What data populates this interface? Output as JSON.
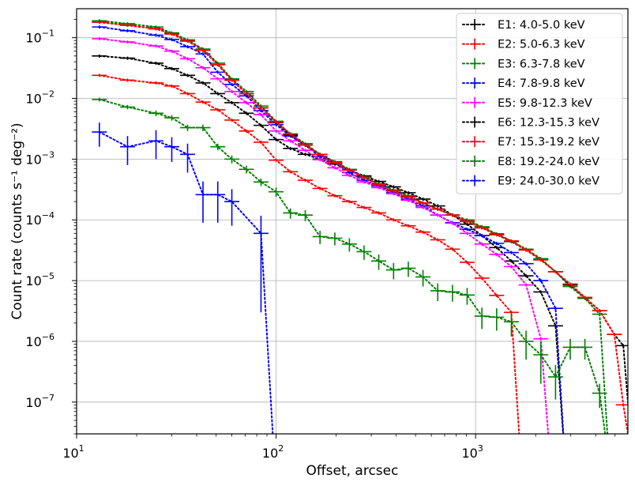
{
  "chart_data": {
    "type": "line",
    "xlabel": "Offset, arcsec",
    "ylabel": "Count rate (counts s⁻¹ deg⁻²)",
    "xscale": "log",
    "yscale": "log",
    "xlim": [
      10,
      5800
    ],
    "ylim": [
      3e-08,
      0.3
    ],
    "grid": true,
    "legend_position": "upper-right",
    "x_ticks": [
      {
        "value": 10,
        "base": "10",
        "exp": "1"
      },
      {
        "value": 100,
        "base": "10",
        "exp": "2"
      },
      {
        "value": 1000,
        "base": "10",
        "exp": "3"
      }
    ],
    "y_ticks": [
      {
        "value": 1e-07,
        "base": "10",
        "exp": "−7"
      },
      {
        "value": 1e-06,
        "base": "10",
        "exp": "−6"
      },
      {
        "value": 1e-05,
        "base": "10",
        "exp": "−5"
      },
      {
        "value": 0.0001,
        "base": "10",
        "exp": "−4"
      },
      {
        "value": 0.001,
        "base": "10",
        "exp": "−3"
      },
      {
        "value": 0.01,
        "base": "10",
        "exp": "−2"
      },
      {
        "value": 0.1,
        "base": "10",
        "exp": "−1"
      }
    ],
    "series": [
      {
        "name": "E1: 4.0-5.0 keV",
        "color": "#000000",
        "x": [
          13,
          18,
          25,
          30,
          36,
          43,
          51,
          60,
          71,
          84,
          100,
          118,
          140,
          166,
          197,
          233,
          276,
          327,
          388,
          460,
          545,
          646,
          766,
          907,
          1076,
          1275,
          1511,
          1791,
          2123,
          2516
        ],
        "y": [
          0.05,
          0.046,
          0.038,
          0.031,
          0.024,
          0.018,
          0.012,
          0.0085,
          0.0057,
          0.0036,
          0.0021,
          0.0015,
          0.0012,
          0.001,
          0.00083,
          0.00066,
          0.00053,
          0.00043,
          0.00035,
          0.00028,
          0.00022,
          0.00017,
          0.00012,
          8.5e-05,
          5.5e-05,
          3.5e-05,
          2.1e-05,
          1.2e-05,
          6.5e-06,
          1.8e-06
        ]
      },
      {
        "name": "E2: 5.0-6.3 keV",
        "color": "#ff0000",
        "x": [
          13,
          18,
          25,
          30,
          36,
          43,
          51,
          60,
          71,
          84,
          100,
          118,
          140,
          166,
          197,
          233,
          276,
          327,
          388,
          460,
          545,
          646,
          766,
          907,
          1076,
          1275,
          1511
        ],
        "y": [
          0.024,
          0.02,
          0.018,
          0.016,
          0.012,
          0.0087,
          0.0065,
          0.0044,
          0.0029,
          0.0019,
          0.00096,
          0.00062,
          0.00045,
          0.00033,
          0.00025,
          0.0002,
          0.00016,
          0.00013,
          0.0001,
          8e-05,
          6.3e-05,
          4.7e-05,
          3.3e-05,
          2e-05,
          1.1e-05,
          5.7e-06,
          3e-06
        ]
      },
      {
        "name": "E3: 6.3-7.8 keV",
        "color": "#008000",
        "x": [
          13,
          18,
          25,
          30,
          36,
          43,
          51,
          60,
          71,
          84,
          100,
          118,
          140,
          166,
          197,
          233,
          276,
          327,
          388,
          460,
          545,
          646,
          766,
          907,
          1076,
          1275,
          1511,
          1791,
          2123,
          2516,
          2981,
          3532,
          4186
        ],
        "y": [
          0.19,
          0.17,
          0.15,
          0.12,
          0.092,
          0.065,
          0.038,
          0.021,
          0.013,
          0.0075,
          0.0042,
          0.0026,
          0.0018,
          0.0012,
          0.00091,
          0.00068,
          0.00051,
          0.00039,
          0.00031,
          0.00025,
          0.00019,
          0.00015,
          0.00012,
          0.0001,
          7.7e-05,
          5.9e-05,
          4.5e-05,
          3.3e-05,
          2.3e-05,
          1.4e-05,
          8e-06,
          5.1e-06,
          2.8e-06
        ]
      },
      {
        "name": "E4: 7.8-9.8 keV",
        "color": "#0000ff",
        "x": [
          13,
          18,
          25,
          30,
          36,
          43,
          51,
          60,
          71,
          84,
          100,
          118,
          140,
          166,
          197,
          233,
          276,
          327,
          388,
          460,
          545,
          646,
          766,
          907,
          1076,
          1275,
          1511,
          1791,
          2123,
          2516
        ],
        "y": [
          0.15,
          0.13,
          0.11,
          0.093,
          0.071,
          0.054,
          0.027,
          0.017,
          0.011,
          0.0063,
          0.0037,
          0.0024,
          0.0017,
          0.0011,
          0.00088,
          0.0006,
          0.00045,
          0.00036,
          0.00028,
          0.00022,
          0.00017,
          0.00012,
          9e-05,
          7e-05,
          5.5e-05,
          4.1e-05,
          2.9e-05,
          1.9e-05,
          1e-05,
          3.5e-06
        ]
      },
      {
        "name": "E5: 9.8-12.3 keV",
        "color": "#ff00ff",
        "x": [
          13,
          18,
          25,
          30,
          36,
          43,
          51,
          60,
          71,
          84,
          100,
          118,
          140,
          166,
          197,
          233,
          276,
          327,
          388,
          460,
          545,
          646,
          766,
          907,
          1076,
          1275,
          1511,
          1791,
          2123
        ],
        "y": [
          0.096,
          0.085,
          0.073,
          0.06,
          0.045,
          0.032,
          0.021,
          0.013,
          0.0085,
          0.0054,
          0.0029,
          0.002,
          0.0014,
          0.00098,
          0.00072,
          0.00054,
          0.00042,
          0.00034,
          0.00027,
          0.00021,
          0.00016,
          0.00012,
          8.8e-05,
          6e-05,
          4e-05,
          2.7e-05,
          1.7e-05,
          8.5e-06,
          1.1e-06
        ]
      },
      {
        "name": "E6: 12.3-15.3 keV",
        "color": "#000000",
        "x": [
          13,
          18,
          25,
          30,
          36,
          43,
          51,
          60,
          71,
          84,
          100,
          118,
          140,
          166,
          197,
          233,
          276,
          327,
          388,
          460,
          545,
          646,
          766,
          907,
          1076,
          1275,
          1511,
          1791,
          2123,
          2516,
          2981,
          3532,
          4186,
          4960,
          5500
        ],
        "y": [
          0.18,
          0.16,
          0.14,
          0.115,
          0.088,
          0.062,
          0.036,
          0.02,
          0.012,
          0.007,
          0.004,
          0.0025,
          0.0017,
          0.0012,
          0.00088,
          0.00066,
          0.0005,
          0.00038,
          0.0003,
          0.00024,
          0.00019,
          0.00015,
          0.00012,
          9.5e-05,
          7.4e-05,
          5.7e-05,
          4.4e-05,
          3.2e-05,
          2.2e-05,
          1.4e-05,
          8.5e-06,
          5.3e-06,
          3.2e-06,
          1.3e-06,
          8.5e-07
        ]
      },
      {
        "name": "E7: 15.3-19.2 keV",
        "color": "#ff0000",
        "x": [
          13,
          18,
          25,
          30,
          36,
          43,
          51,
          60,
          71,
          84,
          100,
          118,
          140,
          166,
          197,
          233,
          276,
          327,
          388,
          460,
          545,
          646,
          766,
          907,
          1076,
          1275,
          1511,
          1791,
          2123,
          2516,
          2981,
          3532,
          4186,
          4960,
          5500
        ],
        "y": [
          0.18,
          0.16,
          0.14,
          0.115,
          0.088,
          0.062,
          0.036,
          0.02,
          0.012,
          0.007,
          0.0041,
          0.0026,
          0.0017,
          0.0012,
          0.00088,
          0.00066,
          0.0005,
          0.00038,
          0.0003,
          0.00024,
          0.00019,
          0.00015,
          0.00012,
          9.5e-05,
          7.4e-05,
          5.7e-05,
          4.5e-05,
          3.2e-05,
          2.2e-05,
          1.4e-05,
          8.8e-06,
          5.3e-06,
          3.2e-06,
          1.3e-06,
          9e-08
        ]
      },
      {
        "name": "E8: 19.2-24.0 keV",
        "color": "#008000",
        "x": [
          13,
          18,
          25,
          30,
          36,
          43,
          51,
          60,
          71,
          84,
          100,
          118,
          140,
          166,
          197,
          233,
          276,
          327,
          388,
          460,
          545,
          646,
          766,
          907,
          1076,
          1275,
          1511,
          1791,
          2123,
          2516,
          2981,
          3532,
          4186
        ],
        "y": [
          0.0096,
          0.0072,
          0.0057,
          0.0048,
          0.0033,
          0.0033,
          0.0016,
          0.001,
          0.00068,
          0.00042,
          0.00029,
          0.00013,
          0.00012,
          5.3e-05,
          5e-05,
          4e-05,
          3e-05,
          2.1e-05,
          1.5e-05,
          1.6e-05,
          1.15e-05,
          6.8e-06,
          6.5e-06,
          5.8e-06,
          2.6e-06,
          2.5e-06,
          2.1e-06,
          1e-06,
          6e-07,
          2.6e-07,
          8e-07,
          8e-07,
          1.4e-07
        ],
        "yerr": [
          0.0007,
          0.0006,
          0.0006,
          0.0005,
          0.0004,
          0.0004,
          0.0002,
          0.00015,
          0.0001,
          6e-05,
          5e-05,
          2.5e-05,
          2.5e-05,
          1.3e-05,
          1.2e-05,
          1e-05,
          8e-06,
          6e-06,
          4.5e-06,
          4.5e-06,
          3.5e-06,
          2.2e-06,
          2e-06,
          1.8e-06,
          1e-06,
          1e-06,
          9e-07,
          5e-07,
          4e-07,
          1.5e-07,
          3e-07,
          3e-07,
          6e-08
        ]
      },
      {
        "name": "E9: 24.0-30.0 keV",
        "color": "#0000ff",
        "x": [
          13,
          18,
          25,
          30,
          36,
          43,
          51,
          60,
          84
        ],
        "y": [
          0.0028,
          0.0016,
          0.002,
          0.0016,
          0.0012,
          0.00026,
          0.00026,
          0.0002,
          6e-05
        ],
        "yerr": [
          0.0012,
          0.0008,
          0.001,
          0.0007,
          0.0006,
          0.00017,
          0.00017,
          0.00012,
          5.7e-05
        ]
      }
    ]
  }
}
